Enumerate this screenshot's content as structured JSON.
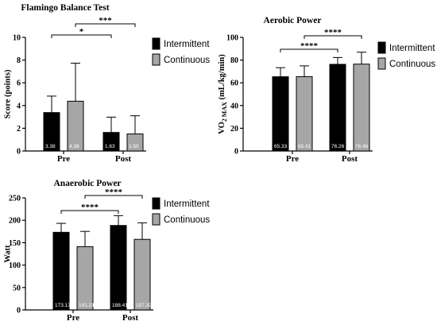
{
  "colors": {
    "intermittent": "#000000",
    "continuous": "#a6a6a6",
    "axis": "#000000"
  },
  "legend": {
    "intermittent": "Intermittent",
    "continuous": "Continuous"
  },
  "chart_data": [
    {
      "id": "flamingo",
      "type": "bar",
      "title": "Flamingo Balance Test",
      "ylabel": "Score (points)",
      "categories": [
        "Pre",
        "Post"
      ],
      "ylim": [
        0,
        10
      ],
      "yticks": [
        0,
        2,
        4,
        6,
        8,
        10
      ],
      "series": [
        {
          "name": "Intermittent",
          "values": [
            3.38,
            1.63
          ],
          "errors": [
            1.45,
            1.35
          ],
          "labels": [
            "3.38",
            "1.63"
          ]
        },
        {
          "name": "Continuous",
          "values": [
            4.38,
            1.5
          ],
          "errors": [
            3.35,
            1.6
          ],
          "labels": [
            "4.38",
            "1.50"
          ]
        }
      ],
      "significance": [
        {
          "from": [
            0,
            0
          ],
          "to": [
            1,
            0
          ],
          "label": "*"
        },
        {
          "from": [
            0,
            1
          ],
          "to": [
            1,
            1
          ],
          "label": "***"
        }
      ],
      "legend_position": "top-right"
    },
    {
      "id": "aerobic",
      "type": "bar",
      "title": "Aerobic Power",
      "ylabel": "VO2 MAX (mL/kg/min)",
      "categories": [
        "Pre",
        "Post"
      ],
      "ylim": [
        0,
        100
      ],
      "yticks": [
        0,
        20,
        40,
        60,
        80,
        100
      ],
      "series": [
        {
          "name": "Intermittent",
          "values": [
            65.33,
            76.26
          ],
          "errors": [
            8,
            6
          ],
          "labels": [
            "65.33",
            "76.26"
          ]
        },
        {
          "name": "Continuous",
          "values": [
            65.41,
            76.46
          ],
          "errors": [
            9.5,
            10.5
          ],
          "labels": [
            "65.41",
            "76.46"
          ]
        }
      ],
      "significance": [
        {
          "from": [
            0,
            0
          ],
          "to": [
            1,
            0
          ],
          "label": "****"
        },
        {
          "from": [
            0,
            1
          ],
          "to": [
            1,
            1
          ],
          "label": "****"
        }
      ],
      "legend_position": "top-right"
    },
    {
      "id": "anaerobic",
      "type": "bar",
      "title": "Anaerobic Power",
      "ylabel": "Watt",
      "categories": [
        "Pre",
        "Post"
      ],
      "ylim": [
        0,
        250
      ],
      "yticks": [
        0,
        50,
        100,
        150,
        200,
        250
      ],
      "series": [
        {
          "name": "Intermittent",
          "values": [
            173.17,
            188.41
          ],
          "errors": [
            20,
            22
          ],
          "labels": [
            "173.17",
            "188.41"
          ]
        },
        {
          "name": "Continuous",
          "values": [
            141.21,
            157.39
          ],
          "errors": [
            34,
            37
          ],
          "labels": [
            "141.21",
            "157.39"
          ]
        }
      ],
      "significance": [
        {
          "from": [
            0,
            0
          ],
          "to": [
            1,
            0
          ],
          "label": "****"
        },
        {
          "from": [
            0,
            1
          ],
          "to": [
            1,
            1
          ],
          "label": "****"
        }
      ],
      "legend_position": "top-right"
    }
  ]
}
